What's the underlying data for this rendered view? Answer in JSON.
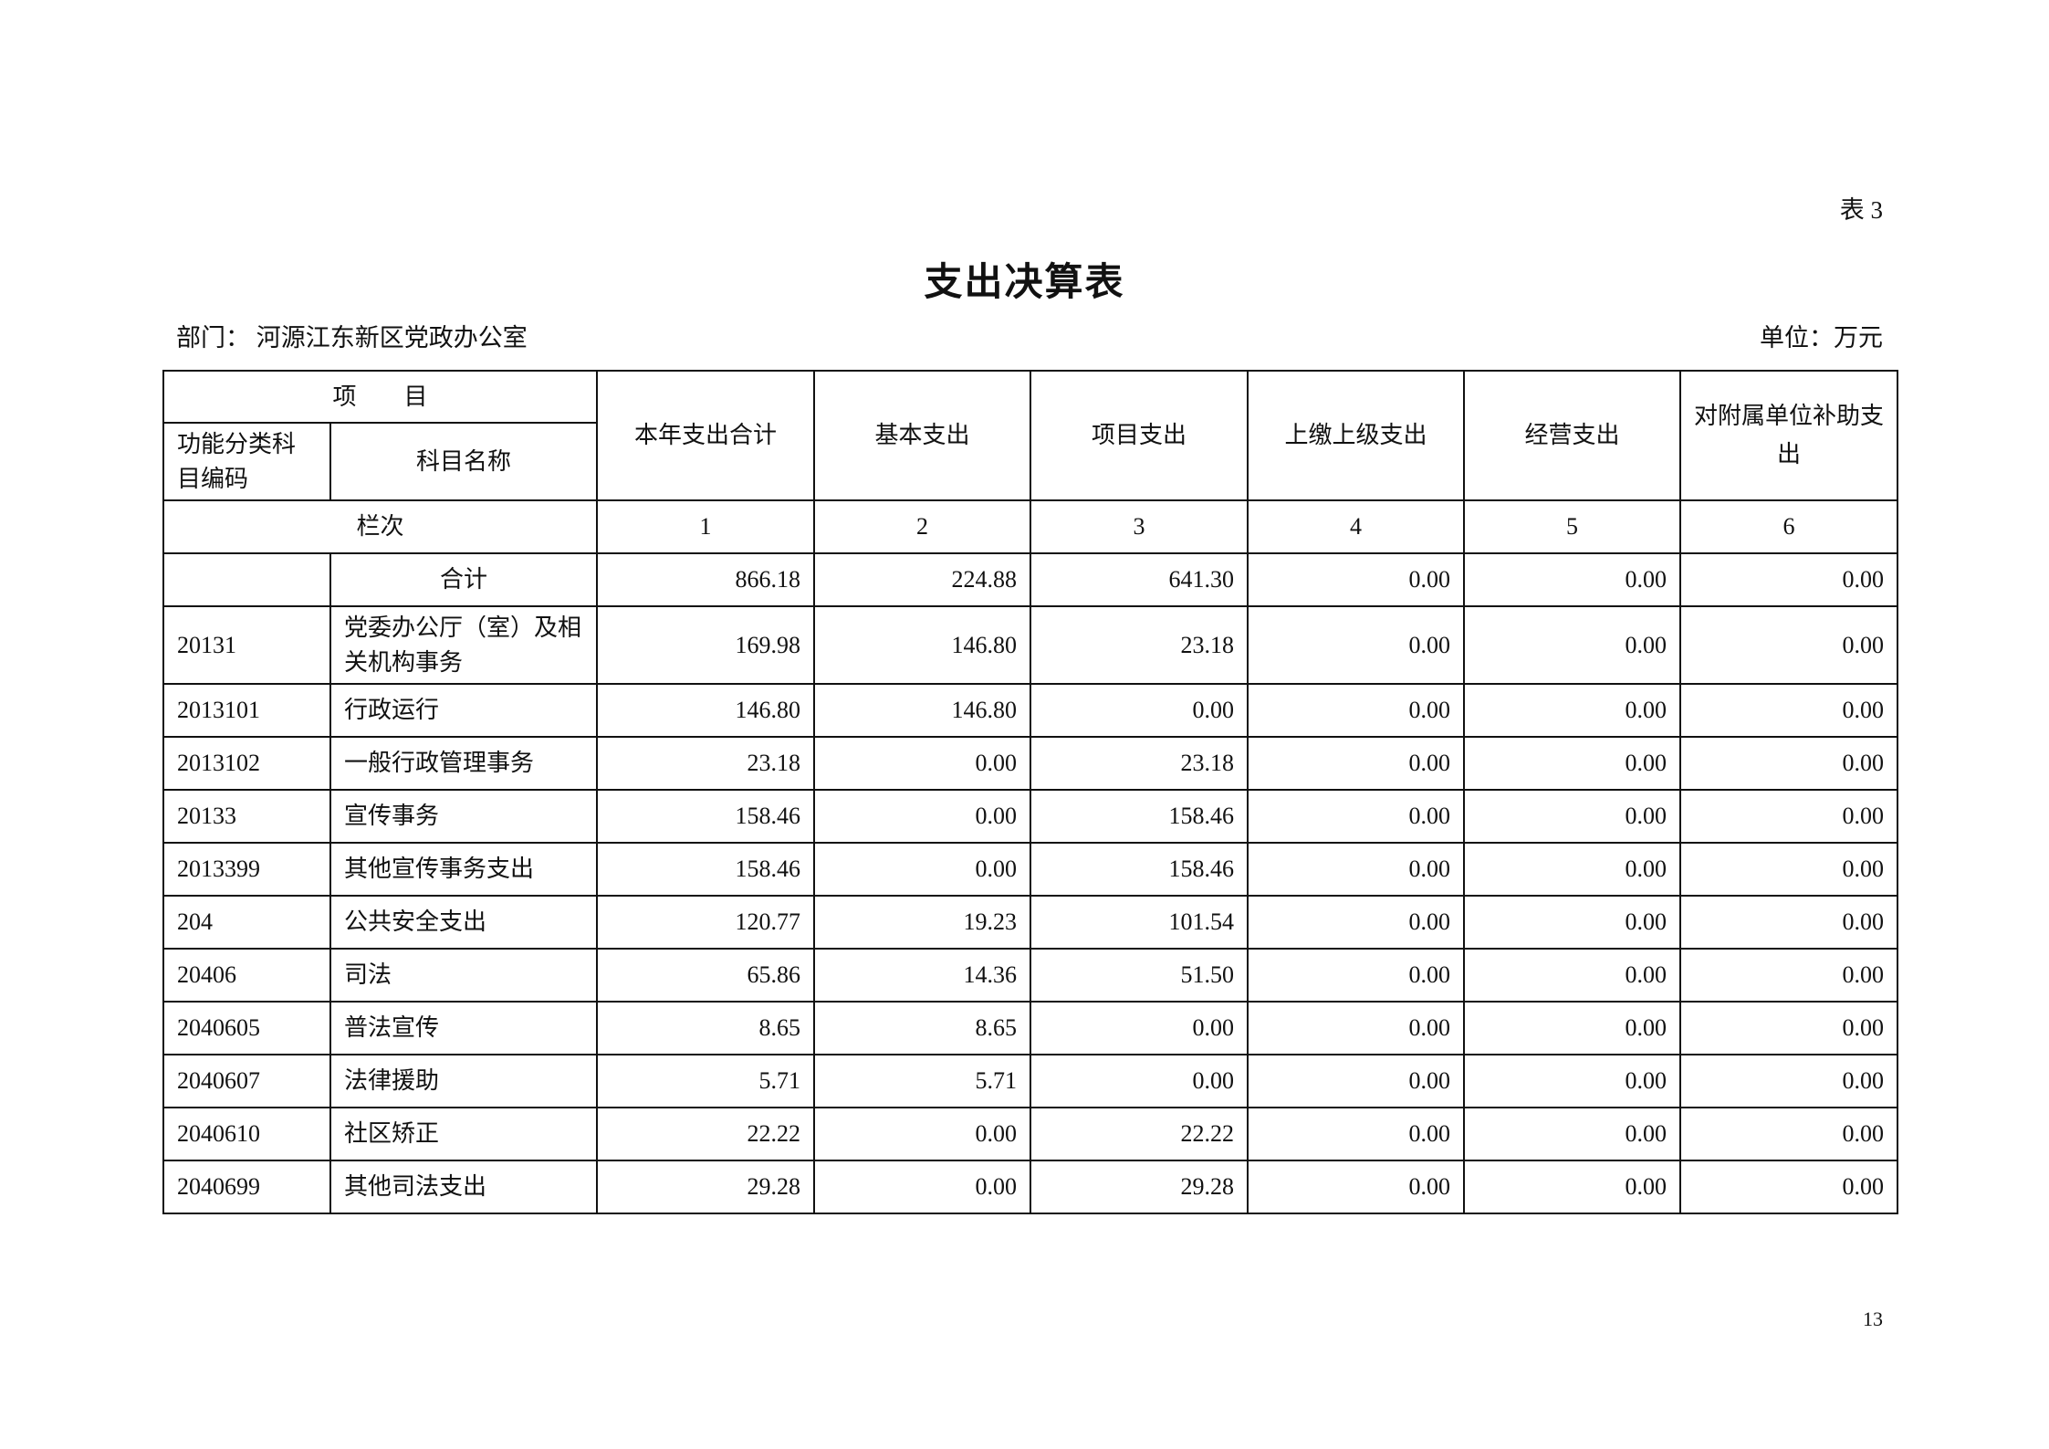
{
  "header": {
    "table_no": "表 3",
    "title": "支出决算表",
    "department": "部门：  河源江东新区党政办公室",
    "unit": "单位：万元"
  },
  "table": {
    "group_header": "项　　目",
    "code_header": "功能分类科目编码",
    "name_header": "科目名称",
    "columns": [
      "本年支出合计",
      "基本支出",
      "项目支出",
      "上缴上级支出",
      "经营支出",
      "对附属单位补助支出"
    ],
    "column_index_label": "栏次",
    "column_index": [
      "1",
      "2",
      "3",
      "4",
      "5",
      "6"
    ],
    "total": {
      "code": "",
      "name": "合计",
      "values": [
        "866.18",
        "224.88",
        "641.30",
        "0.00",
        "0.00",
        "0.00"
      ]
    },
    "rows": [
      {
        "code": "20131",
        "name": "党委办公厅（室）及相关机构事务",
        "values": [
          "169.98",
          "146.80",
          "23.18",
          "0.00",
          "0.00",
          "0.00"
        ]
      },
      {
        "code": "2013101",
        "name": "行政运行",
        "values": [
          "146.80",
          "146.80",
          "0.00",
          "0.00",
          "0.00",
          "0.00"
        ]
      },
      {
        "code": "2013102",
        "name": "一般行政管理事务",
        "values": [
          "23.18",
          "0.00",
          "23.18",
          "0.00",
          "0.00",
          "0.00"
        ]
      },
      {
        "code": "20133",
        "name": "宣传事务",
        "values": [
          "158.46",
          "0.00",
          "158.46",
          "0.00",
          "0.00",
          "0.00"
        ]
      },
      {
        "code": "2013399",
        "name": "其他宣传事务支出",
        "values": [
          "158.46",
          "0.00",
          "158.46",
          "0.00",
          "0.00",
          "0.00"
        ]
      },
      {
        "code": "204",
        "name": "公共安全支出",
        "values": [
          "120.77",
          "19.23",
          "101.54",
          "0.00",
          "0.00",
          "0.00"
        ]
      },
      {
        "code": "20406",
        "name": "司法",
        "values": [
          "65.86",
          "14.36",
          "51.50",
          "0.00",
          "0.00",
          "0.00"
        ]
      },
      {
        "code": "2040605",
        "name": "普法宣传",
        "values": [
          "8.65",
          "8.65",
          "0.00",
          "0.00",
          "0.00",
          "0.00"
        ]
      },
      {
        "code": "2040607",
        "name": "法律援助",
        "values": [
          "5.71",
          "5.71",
          "0.00",
          "0.00",
          "0.00",
          "0.00"
        ]
      },
      {
        "code": "2040610",
        "name": "社区矫正",
        "values": [
          "22.22",
          "0.00",
          "22.22",
          "0.00",
          "0.00",
          "0.00"
        ]
      },
      {
        "code": "2040699",
        "name": "其他司法支出",
        "values": [
          "29.28",
          "0.00",
          "29.28",
          "0.00",
          "0.00",
          "0.00"
        ]
      }
    ]
  },
  "footer": {
    "page_number": "13"
  }
}
